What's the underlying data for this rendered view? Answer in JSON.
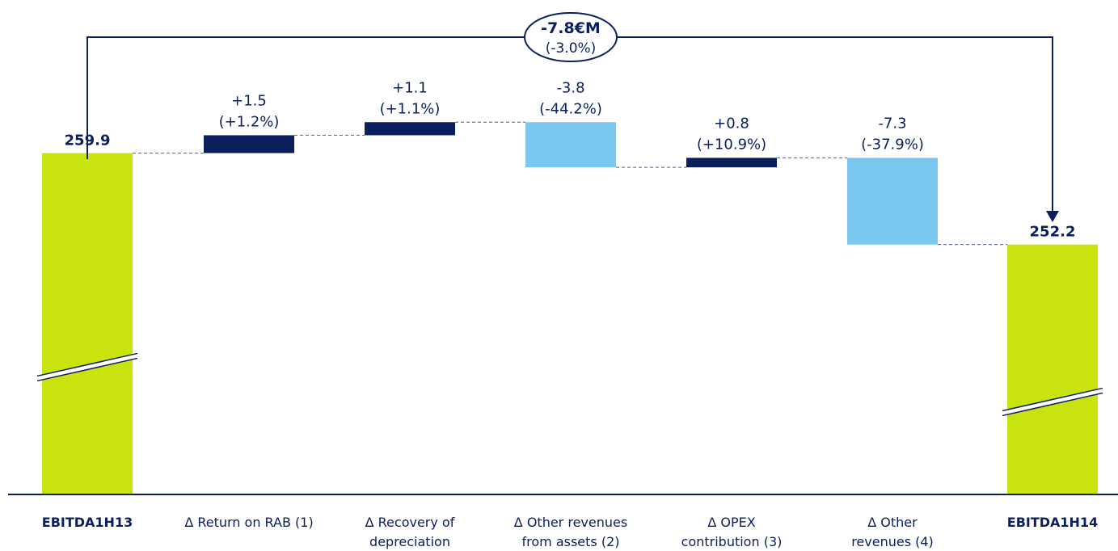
{
  "chart_data": {
    "type": "waterfall",
    "title": "",
    "unit": "€M",
    "bars": [
      {
        "kind": "total",
        "label": "EBITDA1H13",
        "value": 259.9,
        "value_label": "259.9"
      },
      {
        "kind": "delta",
        "label_lines": [
          "Δ Return on RAB (1)"
        ],
        "value": 1.5,
        "value_label": "+1.5",
        "pct_label": "(+1.2%)"
      },
      {
        "kind": "delta",
        "label_lines": [
          "Δ Recovery of",
          "depreciation"
        ],
        "value": 1.1,
        "value_label": "+1.1",
        "pct_label": "(+1.1%)"
      },
      {
        "kind": "delta",
        "label_lines": [
          "Δ Other revenues",
          "from assets (2)"
        ],
        "value": -3.8,
        "value_label": "-3.8",
        "pct_label": "(-44.2%)"
      },
      {
        "kind": "delta",
        "label_lines": [
          "Δ OPEX",
          "contribution (3)"
        ],
        "value": 0.8,
        "value_label": "+0.8",
        "pct_label": "(+10.9%)"
      },
      {
        "kind": "delta",
        "label_lines": [
          "Δ Other",
          "revenues (4)"
        ],
        "value": -7.3,
        "value_label": "-7.3",
        "pct_label": "(-37.9%)"
      },
      {
        "kind": "total",
        "label": "EBITDA1H14",
        "value": 252.2,
        "value_label": "252.2"
      }
    ],
    "change_bubble": {
      "line1": "-7.8€M",
      "line2": "(-3.0%)"
    },
    "axis_break": true,
    "colors": {
      "total": "#c8e30d",
      "increase": "#0a1f5c",
      "decrease": "#7ac7ef",
      "text": "#0a1f5c",
      "connector": "#6a7aa6"
    }
  }
}
